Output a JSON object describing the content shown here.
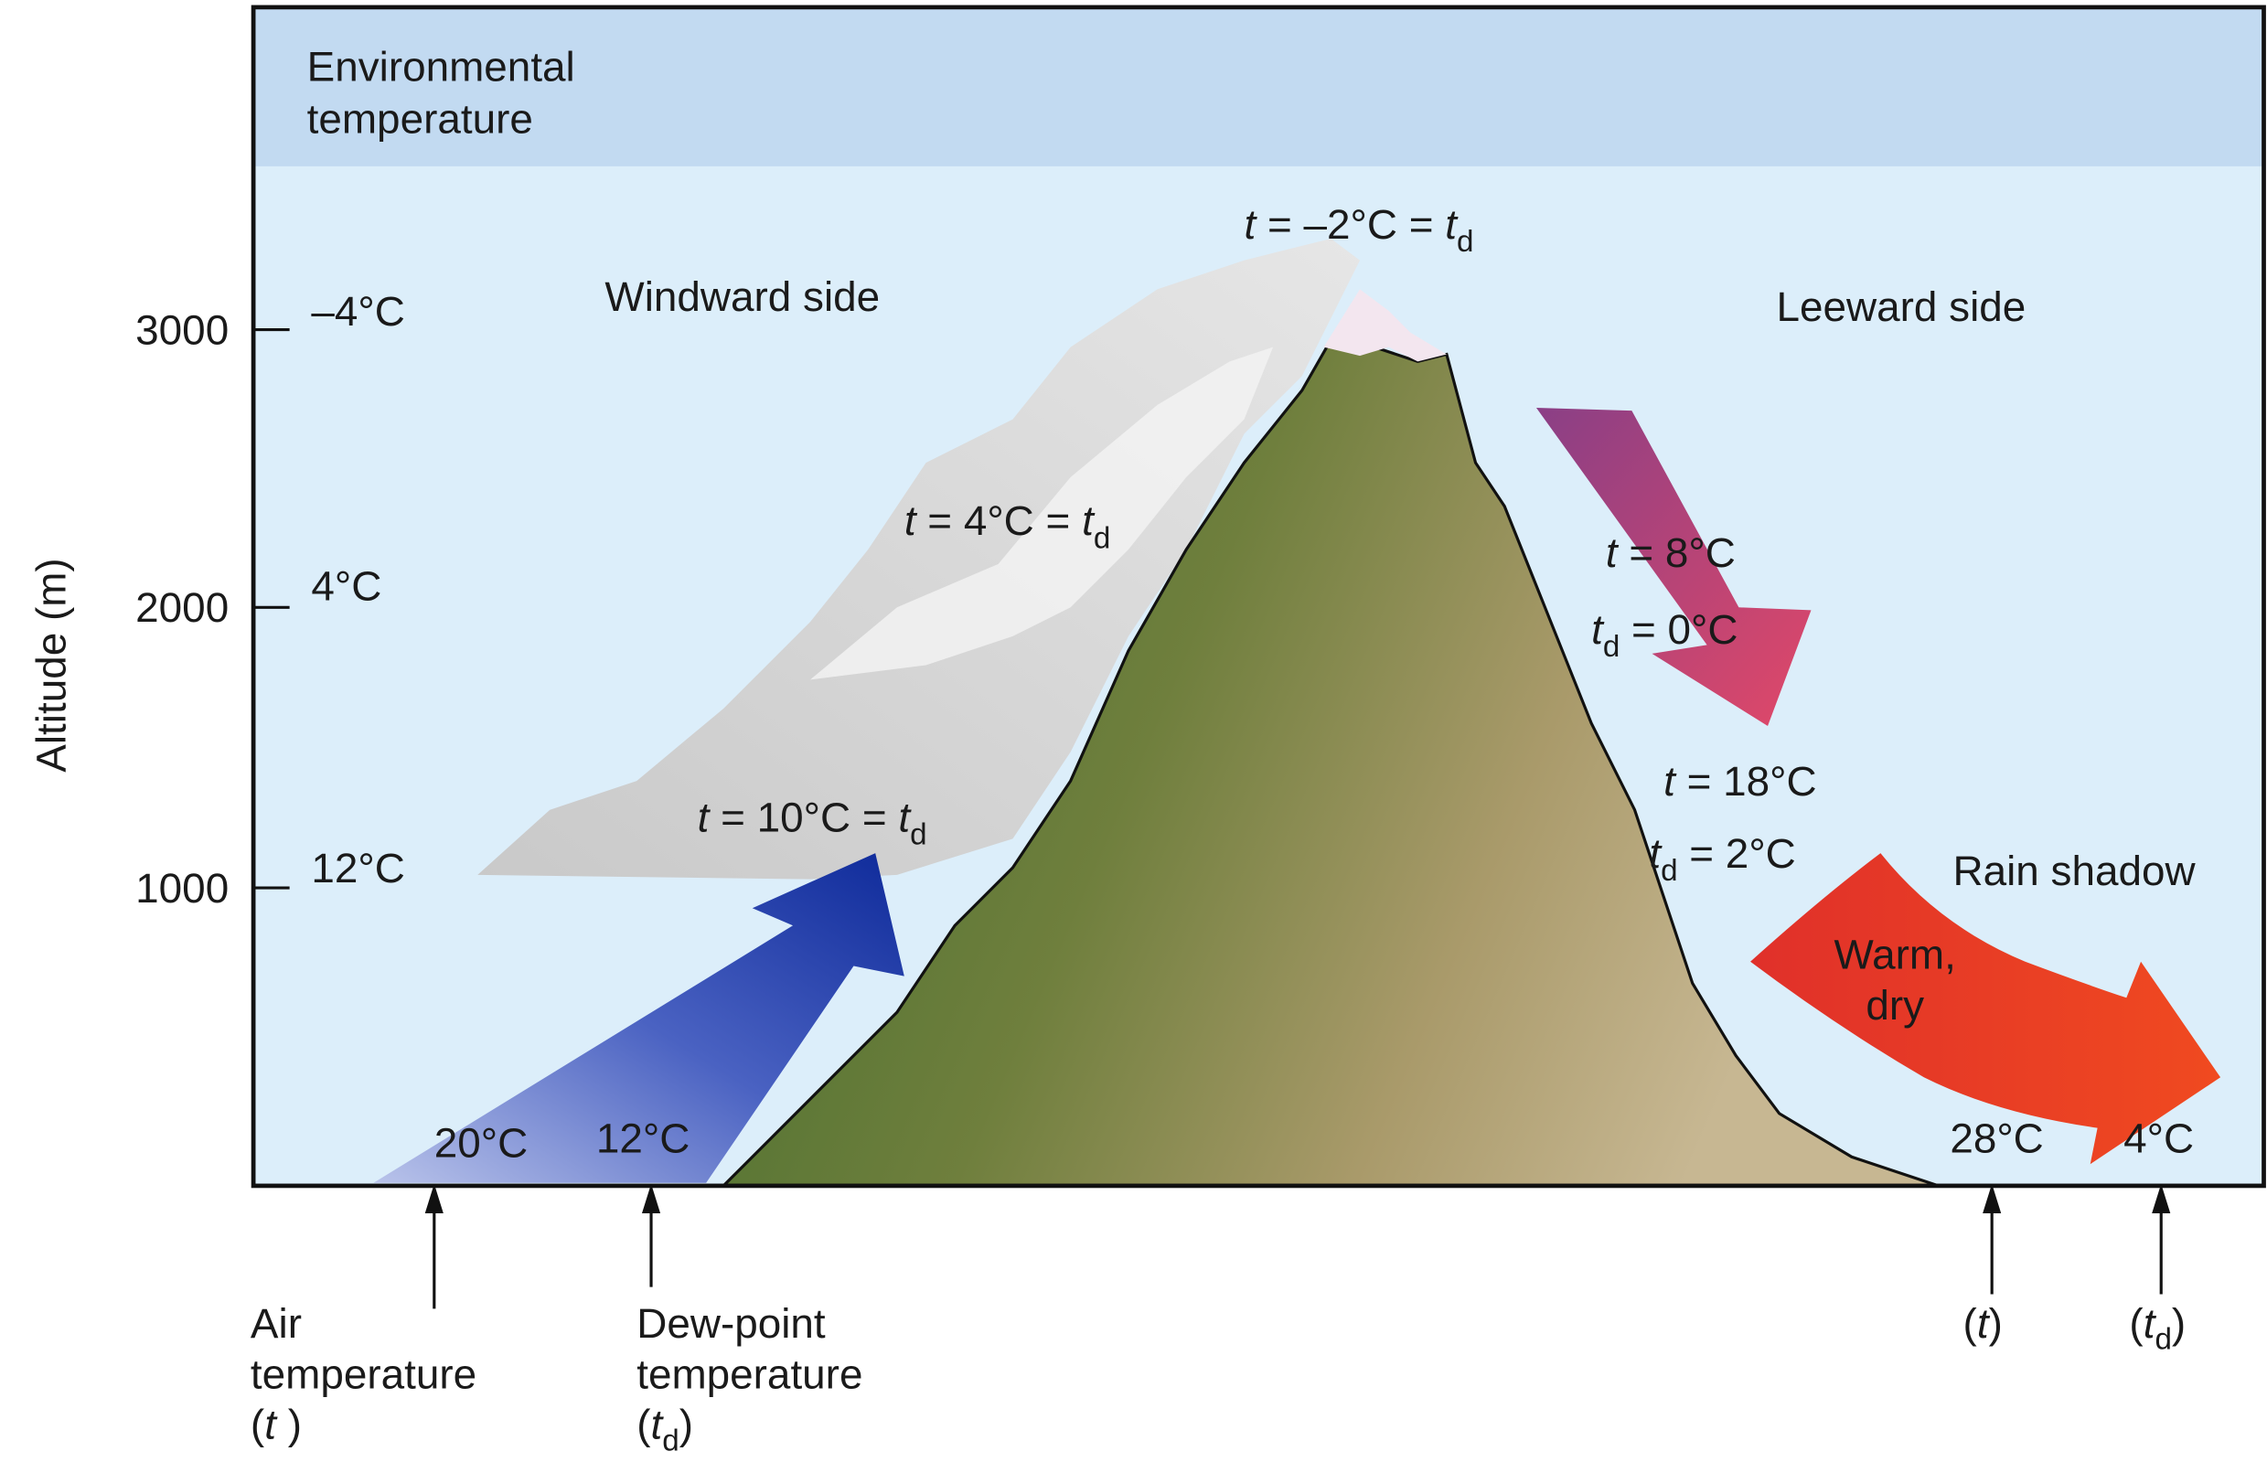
{
  "environmental_temperature": [
    "Environmental",
    "temperature"
  ],
  "y_axis": {
    "label": "Altitude (m)",
    "ticks": [
      "3000",
      "2000",
      "1000"
    ]
  },
  "environmental_values": [
    "–4°C",
    "4°C",
    "12°C"
  ],
  "windward_side": "Windward side",
  "leeward_side": "Leeward side",
  "rain_shadow": "Rain shadow",
  "warm_dry": [
    "Warm,",
    "dry"
  ],
  "summit": [
    "t",
    " = –2°C = ",
    "t",
    "d"
  ],
  "windward_cloud": [
    "t",
    " = 4°C = ",
    "t",
    "d"
  ],
  "cloud_base": [
    "t",
    " = 10°C = ",
    "t",
    "d"
  ],
  "leeward_upper": [
    [
      "t",
      " = 8°C"
    ],
    [
      "t",
      "d",
      " = 0°C"
    ]
  ],
  "leeward_lower": [
    [
      "t",
      " = 18°C"
    ],
    [
      "t",
      "d",
      " = 2°C"
    ]
  ],
  "surface_windward": [
    "20°C",
    "12°C"
  ],
  "surface_leeward": [
    "28°C",
    "4°C"
  ],
  "captions": {
    "air": [
      "Air",
      "temperature",
      "(",
      "t",
      " )"
    ],
    "dew_point": [
      "Dew-point",
      "temperature",
      "(",
      "t",
      "d",
      ")"
    ],
    "leeward_t": [
      "(",
      "t",
      ")"
    ],
    "leeward_td": [
      "(",
      "t",
      "d",
      ")"
    ]
  }
}
